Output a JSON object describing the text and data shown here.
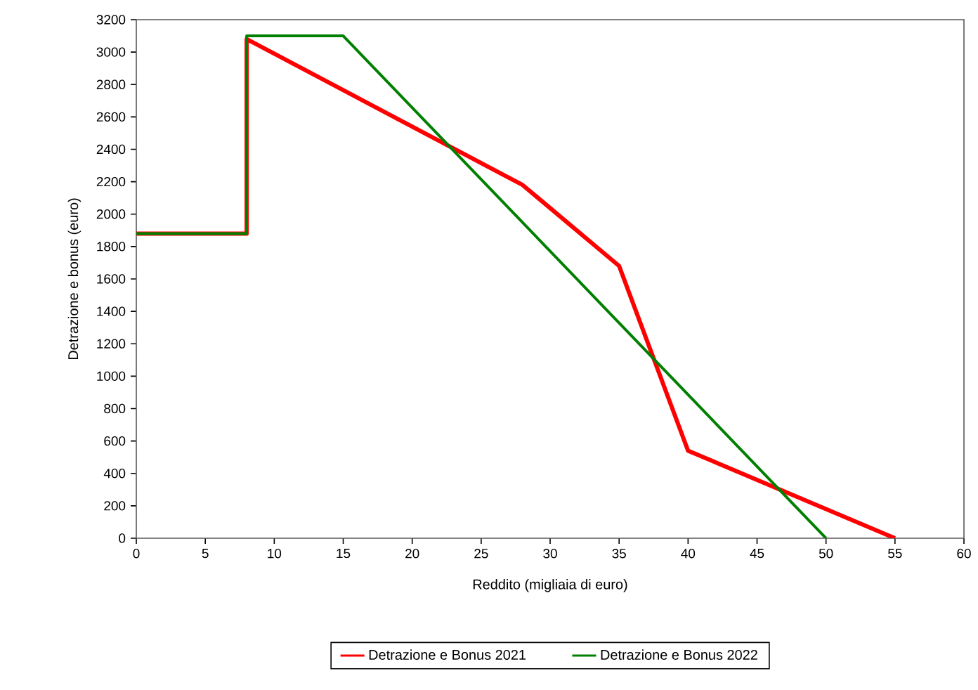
{
  "chart_data": {
    "type": "line",
    "xlabel": "Reddito (migliaia di euro)",
    "ylabel": "Detrazione e bonus (euro)",
    "xlim": [
      0,
      60
    ],
    "xticks": [
      0,
      5,
      10,
      15,
      20,
      25,
      30,
      35,
      40,
      45,
      50,
      55,
      60
    ],
    "ylim": [
      0,
      3200
    ],
    "yticks": [
      0,
      200,
      400,
      600,
      800,
      1000,
      1200,
      1400,
      1600,
      1800,
      2000,
      2200,
      2400,
      2600,
      2800,
      3000,
      3200
    ],
    "grid": false,
    "legend": "bottom",
    "marker": "none",
    "line_style": "solid",
    "series": [
      {
        "name": "Detrazione e Bonus 2021",
        "color": "#ff0000",
        "x": [
          0,
          8,
          8,
          28,
          35,
          40,
          55
        ],
        "values": [
          1880,
          1880,
          3080,
          2180,
          1680,
          540,
          0
        ]
      },
      {
        "name": "Detrazione e Bonus 2022",
        "color": "#008000",
        "x": [
          0,
          8,
          8,
          15,
          50
        ],
        "values": [
          1880,
          1880,
          3100,
          3100,
          0
        ]
      }
    ]
  }
}
